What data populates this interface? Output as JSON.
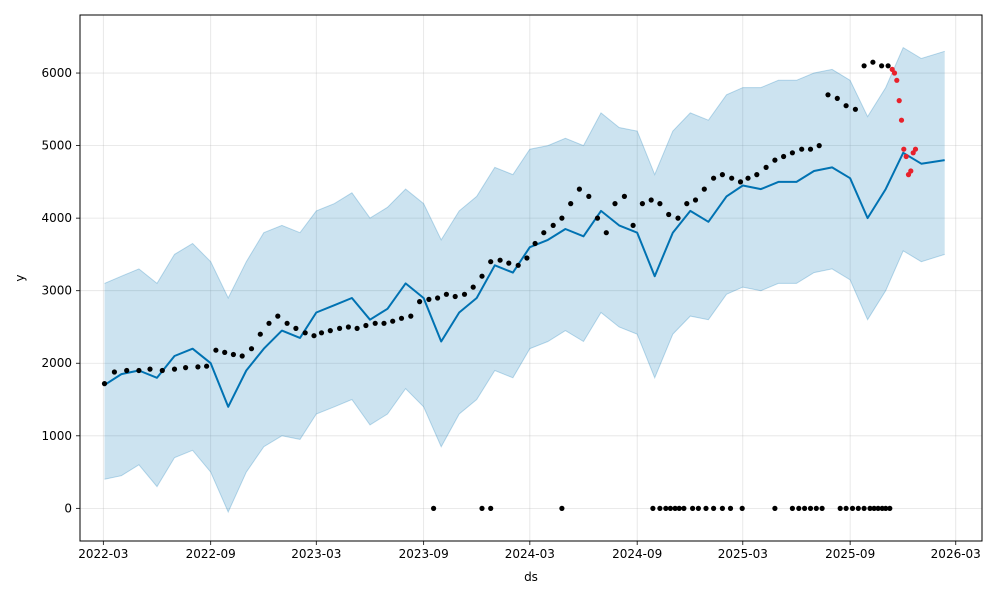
{
  "chart_data": {
    "type": "line",
    "xlabel": "ds",
    "ylabel": "y",
    "x_tick_labels": [
      "2022-03",
      "2022-09",
      "2023-03",
      "2023-09",
      "2024-03",
      "2024-09",
      "2025-03",
      "2025-09",
      "2026-03"
    ],
    "x_ticks": [
      "2022-03-01",
      "2022-09-01",
      "2023-03-01",
      "2023-09-01",
      "2024-03-01",
      "2024-09-01",
      "2025-03-01",
      "2025-09-01",
      "2026-03-01"
    ],
    "y_ticks": [
      0,
      1000,
      2000,
      3000,
      4000,
      5000,
      6000
    ],
    "xlim": [
      "2022-01-20",
      "2026-04-15"
    ],
    "ylim": [
      -450,
      6800
    ],
    "grid": true,
    "colors": {
      "forecast": "#0072B2",
      "interval_fill": "#0072B2",
      "observed": "#000000",
      "future_points": "#e8212b"
    },
    "series": [
      {
        "role": "forecast",
        "x": [
          "2022-03-03",
          "2022-04-01",
          "2022-05-01",
          "2022-06-01",
          "2022-07-01",
          "2022-08-01",
          "2022-09-01",
          "2022-10-01",
          "2022-11-01",
          "2022-12-01",
          "2023-01-01",
          "2023-02-01",
          "2023-03-01",
          "2023-04-01",
          "2023-05-01",
          "2023-06-01",
          "2023-07-01",
          "2023-08-01",
          "2023-09-01",
          "2023-10-01",
          "2023-11-01",
          "2023-12-01",
          "2024-01-01",
          "2024-02-01",
          "2024-03-01",
          "2024-04-01",
          "2024-05-01",
          "2024-06-01",
          "2024-07-01",
          "2024-08-01",
          "2024-09-01",
          "2024-10-01",
          "2024-11-01",
          "2024-12-01",
          "2025-01-01",
          "2025-02-01",
          "2025-03-01",
          "2025-04-01",
          "2025-05-01",
          "2025-06-01",
          "2025-07-01",
          "2025-08-01",
          "2025-09-01",
          "2025-10-01",
          "2025-11-01",
          "2025-12-01",
          "2026-01-01",
          "2026-02-10"
        ],
        "y": [
          1700,
          1850,
          1900,
          1800,
          2100,
          2200,
          2000,
          1400,
          1900,
          2200,
          2450,
          2350,
          2700,
          2800,
          2900,
          2600,
          2750,
          3100,
          2900,
          2300,
          2700,
          2900,
          3350,
          3250,
          3600,
          3700,
          3850,
          3750,
          4100,
          3900,
          3800,
          3200,
          3800,
          4100,
          3950,
          4300,
          4450,
          4400,
          4500,
          4500,
          4650,
          4700,
          4550,
          4000,
          4400,
          4900,
          4750,
          4800
        ]
      },
      {
        "role": "interval_upper",
        "x": [
          "2022-03-03",
          "2022-04-01",
          "2022-05-01",
          "2022-06-01",
          "2022-07-01",
          "2022-08-01",
          "2022-09-01",
          "2022-10-01",
          "2022-11-01",
          "2022-12-01",
          "2023-01-01",
          "2023-02-01",
          "2023-03-01",
          "2023-04-01",
          "2023-05-01",
          "2023-06-01",
          "2023-07-01",
          "2023-08-01",
          "2023-09-01",
          "2023-10-01",
          "2023-11-01",
          "2023-12-01",
          "2024-01-01",
          "2024-02-01",
          "2024-03-01",
          "2024-04-01",
          "2024-05-01",
          "2024-06-01",
          "2024-07-01",
          "2024-08-01",
          "2024-09-01",
          "2024-10-01",
          "2024-11-01",
          "2024-12-01",
          "2025-01-01",
          "2025-02-01",
          "2025-03-01",
          "2025-04-01",
          "2025-05-01",
          "2025-06-01",
          "2025-07-01",
          "2025-08-01",
          "2025-09-01",
          "2025-10-01",
          "2025-11-01",
          "2025-12-01",
          "2026-01-01",
          "2026-02-10"
        ],
        "y": [
          3100,
          3200,
          3300,
          3100,
          3500,
          3650,
          3400,
          2900,
          3400,
          3800,
          3900,
          3800,
          4100,
          4200,
          4350,
          4000,
          4150,
          4400,
          4200,
          3700,
          4100,
          4300,
          4700,
          4600,
          4950,
          5000,
          5100,
          5000,
          5450,
          5250,
          5200,
          4600,
          5200,
          5450,
          5350,
          5700,
          5800,
          5800,
          5900,
          5900,
          6000,
          6050,
          5900,
          5400,
          5800,
          6350,
          6200,
          6300
        ]
      },
      {
        "role": "interval_lower",
        "x": [
          "2022-03-03",
          "2022-04-01",
          "2022-05-01",
          "2022-06-01",
          "2022-07-01",
          "2022-08-01",
          "2022-09-01",
          "2022-10-01",
          "2022-11-01",
          "2022-12-01",
          "2023-01-01",
          "2023-02-01",
          "2023-03-01",
          "2023-04-01",
          "2023-05-01",
          "2023-06-01",
          "2023-07-01",
          "2023-08-01",
          "2023-09-01",
          "2023-10-01",
          "2023-11-01",
          "2023-12-01",
          "2024-01-01",
          "2024-02-01",
          "2024-03-01",
          "2024-04-01",
          "2024-05-01",
          "2024-06-01",
          "2024-07-01",
          "2024-08-01",
          "2024-09-01",
          "2024-10-01",
          "2024-11-01",
          "2024-12-01",
          "2025-01-01",
          "2025-02-01",
          "2025-03-01",
          "2025-04-01",
          "2025-05-01",
          "2025-06-01",
          "2025-07-01",
          "2025-08-01",
          "2025-09-01",
          "2025-10-01",
          "2025-11-01",
          "2025-12-01",
          "2026-01-01",
          "2026-02-10"
        ],
        "y": [
          400,
          450,
          600,
          300,
          700,
          800,
          500,
          -50,
          500,
          850,
          1000,
          950,
          1300,
          1400,
          1500,
          1150,
          1300,
          1650,
          1400,
          850,
          1300,
          1500,
          1900,
          1800,
          2200,
          2300,
          2450,
          2300,
          2700,
          2500,
          2400,
          1800,
          2400,
          2650,
          2600,
          2950,
          3050,
          3000,
          3100,
          3100,
          3250,
          3300,
          3150,
          2600,
          3000,
          3550,
          3400,
          3500
        ]
      },
      {
        "role": "observed",
        "x": [
          "2022-03-03",
          "2022-03-20",
          "2022-04-10",
          "2022-05-01",
          "2022-05-20",
          "2022-06-10",
          "2022-07-01",
          "2022-07-20",
          "2022-08-10",
          "2022-08-25",
          "2022-09-10",
          "2022-09-25",
          "2022-10-10",
          "2022-10-25",
          "2022-11-10",
          "2022-11-25",
          "2022-12-10",
          "2022-12-25",
          "2023-01-10",
          "2023-01-25",
          "2023-02-10",
          "2023-02-25",
          "2023-03-10",
          "2023-03-25",
          "2023-04-10",
          "2023-04-25",
          "2023-05-10",
          "2023-05-25",
          "2023-06-10",
          "2023-06-25",
          "2023-07-10",
          "2023-07-25",
          "2023-08-10",
          "2023-08-25",
          "2023-09-10",
          "2023-09-25",
          "2023-10-10",
          "2023-10-25",
          "2023-11-10",
          "2023-11-25",
          "2023-12-10",
          "2023-12-25",
          "2024-01-10",
          "2024-01-25",
          "2024-02-10",
          "2024-02-25",
          "2024-03-10",
          "2024-03-25",
          "2024-04-10",
          "2024-04-25",
          "2024-05-10",
          "2024-05-25",
          "2024-06-10",
          "2024-06-25",
          "2024-07-10",
          "2024-07-25",
          "2024-08-10",
          "2024-08-25",
          "2024-09-10",
          "2024-09-25",
          "2024-10-10",
          "2024-10-25",
          "2024-11-10",
          "2024-11-25",
          "2024-12-10",
          "2024-12-25",
          "2025-01-10",
          "2025-01-25",
          "2025-02-10",
          "2025-02-25",
          "2025-03-10",
          "2025-03-25",
          "2025-04-10",
          "2025-04-25",
          "2025-05-10",
          "2025-05-25",
          "2025-06-10",
          "2025-06-25",
          "2025-07-10",
          "2025-07-25",
          "2025-08-10",
          "2025-08-25",
          "2025-09-10",
          "2025-09-25",
          "2025-10-10",
          "2025-10-25",
          "2025-11-05"
        ],
        "y": [
          1720,
          1880,
          1900,
          1900,
          1920,
          1900,
          1920,
          1940,
          1950,
          1960,
          2180,
          2150,
          2120,
          2100,
          2200,
          2400,
          2550,
          2650,
          2550,
          2480,
          2420,
          2380,
          2420,
          2450,
          2480,
          2500,
          2480,
          2520,
          2550,
          2550,
          2580,
          2620,
          2650,
          2850,
          2880,
          2900,
          2950,
          2920,
          2950,
          3050,
          3200,
          3400,
          3420,
          3380,
          3350,
          3450,
          3650,
          3800,
          3900,
          4000,
          4200,
          4400,
          4300,
          4000,
          3800,
          4200,
          4300,
          3900,
          4200,
          4250,
          4200,
          4050,
          4000,
          4200,
          4250,
          4400,
          4550,
          4600,
          4550,
          4500,
          4550,
          4600,
          4700,
          4800,
          4850,
          4900,
          4950,
          4950,
          5000,
          5700,
          5650,
          5550,
          5500,
          6100,
          6150,
          6100,
          6100
        ]
      },
      {
        "role": "observed_zero",
        "x": [
          "2023-09-18",
          "2023-12-10",
          "2023-12-25",
          "2024-04-25",
          "2024-09-28",
          "2024-10-10",
          "2024-10-20",
          "2024-10-28",
          "2024-11-05",
          "2024-11-12",
          "2024-11-20",
          "2024-12-05",
          "2024-12-15",
          "2024-12-28",
          "2025-01-10",
          "2025-01-25",
          "2025-02-08",
          "2025-02-28",
          "2025-04-25",
          "2025-05-25",
          "2025-06-05",
          "2025-06-15",
          "2025-06-25",
          "2025-07-05",
          "2025-07-15",
          "2025-08-15",
          "2025-08-25",
          "2025-09-05",
          "2025-09-15",
          "2025-09-25",
          "2025-10-05",
          "2025-10-12",
          "2025-10-19",
          "2025-10-26",
          "2025-11-01",
          "2025-11-08"
        ],
        "y": [
          0,
          0,
          0,
          0,
          0,
          0,
          0,
          0,
          0,
          0,
          0,
          0,
          0,
          0,
          0,
          0,
          0,
          0,
          0,
          0,
          0,
          0,
          0,
          0,
          0,
          0,
          0,
          0,
          0,
          0,
          0,
          0,
          0,
          0,
          0,
          0
        ]
      },
      {
        "role": "observed_future",
        "x": [
          "2025-11-12",
          "2025-11-16",
          "2025-11-20",
          "2025-11-24",
          "2025-11-28",
          "2025-12-02",
          "2025-12-06",
          "2025-12-10",
          "2025-12-14",
          "2025-12-18",
          "2025-12-22"
        ],
        "y": [
          6050,
          6000,
          5900,
          5620,
          5350,
          4950,
          4850,
          4600,
          4650,
          4900,
          4950
        ]
      }
    ]
  }
}
